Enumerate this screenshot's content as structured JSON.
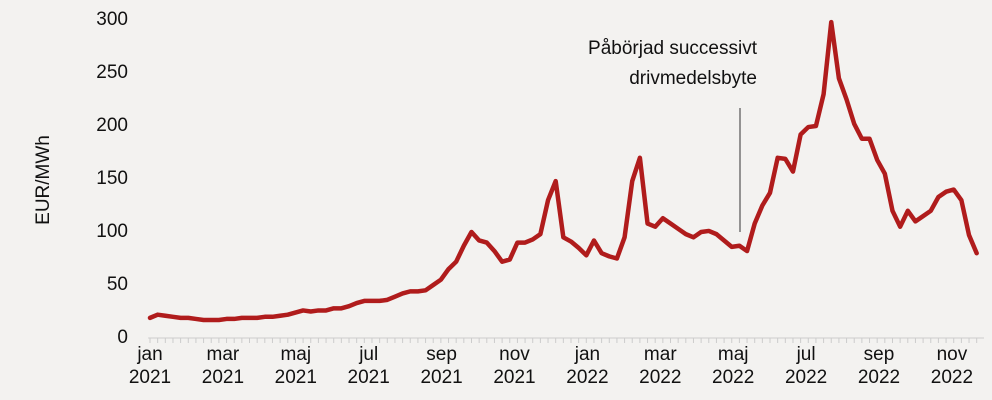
{
  "chart_data": {
    "type": "line",
    "ylabel": "EUR/MWh",
    "annotation": [
      "Påbörjad successivt",
      "drivmedelsbyte"
    ],
    "x": [
      0,
      0.21,
      0.42,
      0.63,
      0.84,
      1.05,
      1.26,
      1.47,
      1.68,
      1.89,
      2.1,
      2.31,
      2.52,
      2.73,
      2.94,
      3.15,
      3.36,
      3.57,
      3.78,
      3.99,
      4.2,
      4.41,
      4.62,
      4.83,
      5.04,
      5.25,
      5.46,
      5.67,
      5.88,
      6.09,
      6.3,
      6.51,
      6.72,
      6.93,
      7.14,
      7.35,
      7.56,
      7.77,
      7.98,
      8.19,
      8.4,
      8.61,
      8.82,
      9.03,
      9.24,
      9.45,
      9.66,
      9.87,
      10.08,
      10.29,
      10.5,
      10.71,
      10.92,
      11.13,
      11.34,
      11.55,
      11.76,
      11.97,
      12.18,
      12.39,
      12.6,
      12.81,
      13.02,
      13.23,
      13.44,
      13.65,
      13.86,
      14.07,
      14.28,
      14.49,
      14.7,
      14.91,
      15.12,
      15.33,
      15.54,
      15.75,
      15.96,
      16.17,
      16.38,
      16.59,
      16.8,
      17.01,
      17.22,
      17.43,
      17.64,
      17.85,
      18.06,
      18.27,
      18.48,
      18.69,
      18.9,
      19.11,
      19.32,
      19.53,
      19.74,
      19.95,
      20.16,
      20.37,
      20.58,
      20.79,
      21.0,
      21.21,
      21.42,
      21.63,
      21.84,
      22.05,
      22.26,
      22.47,
      22.68
    ],
    "series": [
      {
        "name": "EUR/MWh",
        "color": "#b01c1c",
        "values": [
          19,
          22,
          21,
          20,
          19,
          19,
          18,
          17,
          17,
          17,
          18,
          18,
          19,
          19,
          19,
          20,
          20,
          21,
          22,
          24,
          26,
          25,
          26,
          26,
          28,
          28,
          30,
          33,
          35,
          35,
          35,
          36,
          39,
          42,
          44,
          44,
          45,
          50,
          55,
          65,
          72,
          87,
          100,
          92,
          90,
          82,
          72,
          74,
          90,
          90,
          93,
          98,
          130,
          148,
          95,
          91,
          85,
          78,
          92,
          80,
          77,
          75,
          95,
          148,
          170,
          108,
          105,
          113,
          108,
          103,
          98,
          95,
          100,
          101,
          98,
          92,
          86,
          87,
          82,
          108,
          125,
          137,
          170,
          169,
          157,
          192,
          199,
          200,
          230,
          298,
          245,
          225,
          202,
          188,
          188,
          168,
          155,
          120,
          105,
          120,
          110,
          115,
          120,
          133,
          138,
          140,
          130,
          97,
          80
        ]
      }
    ],
    "xlim": [
      -0.05,
      22.9
    ],
    "xticks": [
      {
        "value": 0,
        "label": "jan 2021"
      },
      {
        "value": 2,
        "label": "mar 2021"
      },
      {
        "value": 4,
        "label": "maj 2021"
      },
      {
        "value": 6,
        "label": "jul 2021"
      },
      {
        "value": 8,
        "label": "sep 2021"
      },
      {
        "value": 10,
        "label": "nov 2021"
      },
      {
        "value": 12,
        "label": "jan 2022"
      },
      {
        "value": 14,
        "label": "mar 2022"
      },
      {
        "value": 16,
        "label": "maj 2022"
      },
      {
        "value": 18,
        "label": "jul 2022"
      },
      {
        "value": 20,
        "label": "sep 2022"
      },
      {
        "value": 22,
        "label": "nov 2022"
      }
    ],
    "ylim": [
      0,
      300
    ],
    "yticks": [
      0,
      50,
      100,
      150,
      200,
      250,
      300
    ],
    "grid": false
  }
}
